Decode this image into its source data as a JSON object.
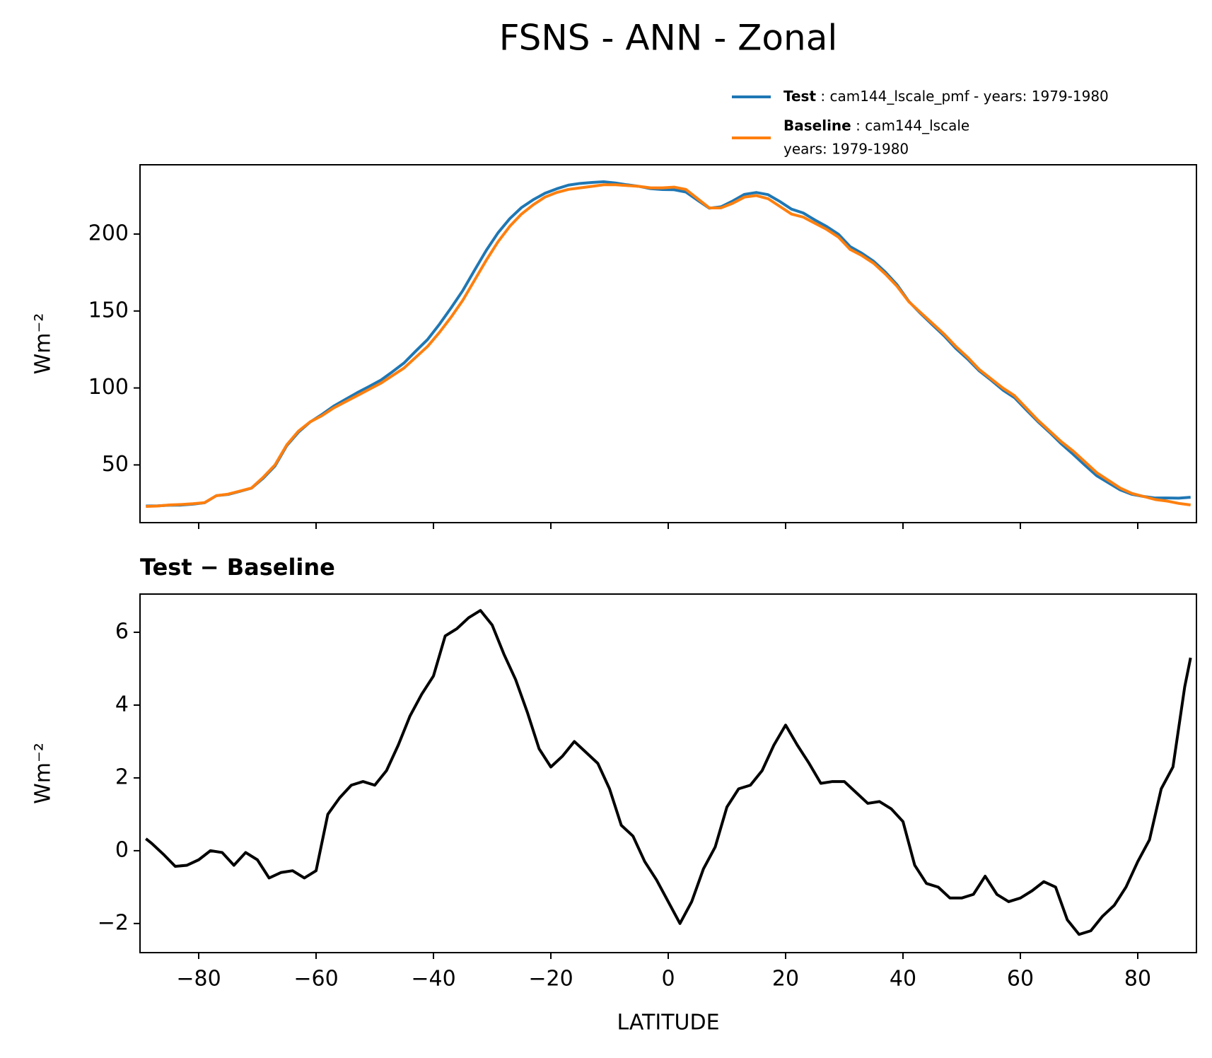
{
  "title": "FSNS - ANN - Zonal",
  "chart_data": [
    {
      "type": "line",
      "ylabel": "Wm⁻²",
      "x": [
        -89,
        -87,
        -85,
        -83,
        -81,
        -79,
        -77,
        -75,
        -73,
        -71,
        -69,
        -67,
        -65,
        -63,
        -61,
        -59,
        -57,
        -55,
        -53,
        -51,
        -49,
        -47,
        -45,
        -43,
        -41,
        -39,
        -37,
        -35,
        -33,
        -31,
        -29,
        -27,
        -25,
        -23,
        -21,
        -19,
        -17,
        -15,
        -13,
        -11,
        -9,
        -7,
        -5,
        -3,
        -1,
        1,
        3,
        5,
        7,
        9,
        11,
        13,
        15,
        17,
        19,
        21,
        23,
        25,
        27,
        29,
        31,
        33,
        35,
        37,
        39,
        41,
        43,
        45,
        47,
        49,
        51,
        53,
        55,
        57,
        59,
        61,
        63,
        65,
        67,
        69,
        71,
        73,
        75,
        77,
        79,
        81,
        83,
        85,
        87,
        89
      ],
      "series": [
        {
          "name": "Test : cam144_lscale_pmf - years: 1979-1980",
          "color": "#1f77b4",
          "values": [
            23.3,
            23.4,
            23.8,
            23.9,
            24.5,
            25.4,
            30,
            30.8,
            32.8,
            34.9,
            41.4,
            49.3,
            62.5,
            71.3,
            77.9,
            82.8,
            88.2,
            92.6,
            96.9,
            100.9,
            105,
            110.5,
            116.3,
            124,
            131.5,
            141.3,
            152,
            163.3,
            176.5,
            189.4,
            200.8,
            210,
            217.2,
            222.3,
            226.5,
            229.4,
            231.8,
            232.9,
            233.5,
            234,
            233.2,
            232,
            231,
            229.5,
            228.9,
            228.8,
            227.3,
            222,
            216.8,
            217.7,
            221.5,
            225.8,
            227,
            225.6,
            221.2,
            216.2,
            213.7,
            209.1,
            204.9,
            199.9,
            191.8,
            187.5,
            182.3,
            175.3,
            167,
            156.2,
            148.4,
            141.1,
            133.9,
            125.7,
            118.8,
            111.1,
            105.1,
            98.7,
            93.7,
            85.8,
            78.1,
            71.1,
            63.6,
            56.9,
            49.8,
            43,
            38.4,
            33.8,
            30.9,
            29.5,
            28.5,
            28.5,
            28.4,
            29
          ]
        },
        {
          "name": "Baseline : cam144_lscale\nyears: 1979-1980",
          "color": "#ff7f0e",
          "values": [
            23,
            23.3,
            24,
            24.3,
            24.8,
            25.5,
            30,
            31,
            33,
            35,
            42,
            50,
            63,
            72,
            78,
            82,
            87,
            91,
            95,
            99,
            103,
            108,
            113,
            120,
            127,
            136,
            146,
            157,
            170,
            183,
            195,
            205,
            213,
            219,
            224,
            227,
            229,
            230,
            231,
            232,
            232,
            231.5,
            231,
            230,
            230,
            230.5,
            229,
            223,
            217,
            217,
            220,
            224,
            225,
            223,
            218,
            213,
            211,
            207,
            203,
            198,
            190,
            186,
            181,
            174,
            166,
            156,
            149,
            142,
            135,
            127,
            120,
            112,
            106,
            100,
            95,
            87,
            79,
            72,
            65,
            59,
            52,
            45,
            40,
            35,
            31.5,
            29.5,
            27.5,
            26.5,
            25,
            24
          ]
        }
      ],
      "xlim": [
        -90,
        90
      ],
      "xticks": [
        -80,
        -60,
        -40,
        -20,
        0,
        20,
        40,
        60,
        80
      ],
      "ylim": [
        12.5,
        245
      ],
      "yticks": [
        50,
        100,
        150,
        200
      ]
    },
    {
      "type": "line",
      "title": "Test − Baseline",
      "ylabel": "Wm⁻²",
      "xlabel": "LATITUDE",
      "x": [
        -89,
        -88,
        -86,
        -84,
        -82,
        -80,
        -78,
        -76,
        -74,
        -72,
        -70,
        -68,
        -66,
        -64,
        -62,
        -60,
        -58,
        -56,
        -54,
        -52,
        -50,
        -48,
        -46,
        -44,
        -42,
        -40,
        -38,
        -36,
        -34,
        -32,
        -30,
        -28,
        -26,
        -24,
        -22,
        -20,
        -18,
        -16,
        -14,
        -12,
        -10,
        -8,
        -6,
        -4,
        -2,
        0,
        2,
        4,
        6,
        8,
        10,
        12,
        14,
        16,
        18,
        20,
        22,
        24,
        26,
        28,
        30,
        32,
        34,
        36,
        38,
        40,
        42,
        44,
        46,
        48,
        50,
        52,
        54,
        56,
        58,
        60,
        62,
        64,
        66,
        68,
        70,
        72,
        74,
        76,
        78,
        80,
        82,
        84,
        86,
        88,
        89
      ],
      "series": [
        {
          "name": "Test − Baseline",
          "color": "#000000",
          "values": [
            0.33,
            0.2,
            -0.1,
            -0.43,
            -0.4,
            -0.25,
            0,
            -0.05,
            -0.4,
            -0.05,
            -0.25,
            -0.75,
            -0.6,
            -0.55,
            -0.75,
            -0.55,
            1.0,
            1.45,
            1.8,
            1.9,
            1.8,
            2.2,
            2.9,
            3.7,
            4.3,
            4.8,
            5.9,
            6.1,
            6.4,
            6.6,
            6.2,
            5.4,
            4.7,
            3.8,
            2.8,
            2.3,
            2.6,
            3.0,
            2.7,
            2.4,
            1.7,
            0.7,
            0.4,
            -0.3,
            -0.8,
            -1.4,
            -2.0,
            -1.4,
            -0.5,
            0.1,
            1.2,
            1.7,
            1.8,
            2.2,
            2.9,
            3.45,
            2.9,
            2.4,
            1.85,
            1.9,
            1.9,
            1.6,
            1.3,
            1.35,
            1.15,
            0.8,
            -0.4,
            -0.9,
            -1.0,
            -1.3,
            -1.3,
            -1.2,
            -0.7,
            -1.2,
            -1.4,
            -1.3,
            -1.1,
            -0.85,
            -1.0,
            -1.9,
            -2.3,
            -2.2,
            -1.8,
            -1.5,
            -1.0,
            -0.3,
            0.3,
            1.7,
            2.3,
            4.5,
            5.3
          ]
        }
      ],
      "xlim": [
        -90,
        90
      ],
      "xticks": [
        {
          "value": -80,
          "label": "−80"
        },
        {
          "value": -60,
          "label": "−60"
        },
        {
          "value": -40,
          "label": "−40"
        },
        {
          "value": -20,
          "label": "−20"
        },
        0,
        20,
        40,
        60,
        80
      ],
      "ylim": [
        -2.8,
        7.05
      ],
      "yticks": [
        {
          "value": -2,
          "label": "−2"
        },
        0,
        2,
        4,
        6
      ]
    }
  ]
}
